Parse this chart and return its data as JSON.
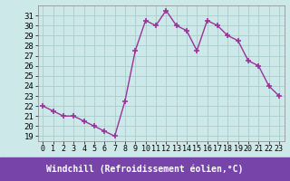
{
  "x": [
    0,
    1,
    2,
    3,
    4,
    5,
    6,
    7,
    8,
    9,
    10,
    11,
    12,
    13,
    14,
    15,
    16,
    17,
    18,
    19,
    20,
    21,
    22,
    23
  ],
  "y": [
    22,
    21.5,
    21,
    21,
    20.5,
    20,
    19.5,
    19,
    22.5,
    27.5,
    30.5,
    30,
    31.5,
    30,
    29.5,
    27.5,
    30.5,
    30,
    29,
    28.5,
    26.5,
    26,
    24,
    23
  ],
  "line_color": "#993399",
  "marker": "+",
  "bg_color": "#cce8e8",
  "grid_color": "#aacccc",
  "xlabel": "Windchill (Refroidissement éolien,°C)",
  "xlabel_color": "#ffffff",
  "xlabel_bg": "#7744aa",
  "xlim": [
    -0.5,
    23.5
  ],
  "ylim": [
    18.5,
    32
  ],
  "yticks": [
    19,
    20,
    21,
    22,
    23,
    24,
    25,
    26,
    27,
    28,
    29,
    30,
    31
  ],
  "xticks": [
    0,
    1,
    2,
    3,
    4,
    5,
    6,
    7,
    8,
    9,
    10,
    11,
    12,
    13,
    14,
    15,
    16,
    17,
    18,
    19,
    20,
    21,
    22,
    23
  ],
  "tick_fontsize": 6.5,
  "line_width": 1.0,
  "marker_size": 4
}
